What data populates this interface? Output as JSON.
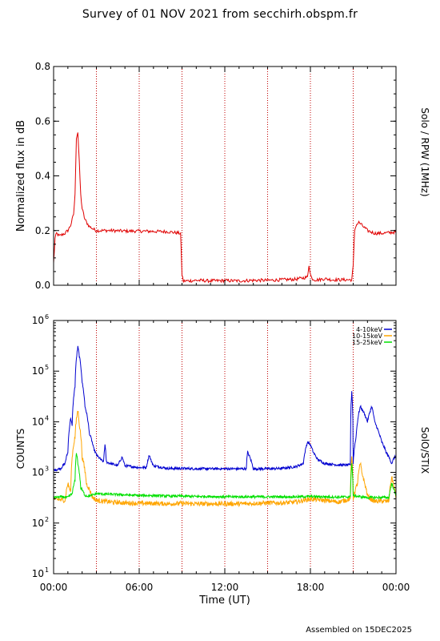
{
  "title": "Survey of 01 NOV 2021 from secchirh.obspm.fr",
  "footer": "Assembled on  15DEC2025",
  "colors": {
    "rpw": "#e00000",
    "stix_4_10": "#0000d0",
    "stix_10_15": "#ffa500",
    "stix_15_25": "#00e000",
    "vlines": "#c00000"
  },
  "chart_data": [
    {
      "type": "line",
      "panel": "top",
      "instrument_label": "Solo / RPW (1MHz)",
      "ylabel": "Normalized flux in dB",
      "xlabel": "",
      "xlim": [
        0,
        24
      ],
      "ylim": [
        0.0,
        0.8
      ],
      "yticks": [
        "0.0",
        "0.2",
        "0.4",
        "0.6",
        "0.8"
      ],
      "vertical_lines_hours": [
        3,
        6,
        9,
        12,
        15,
        18,
        21
      ],
      "series": [
        {
          "color": "#e00000",
          "x": [
            0.0,
            0.1,
            0.2,
            0.4,
            0.6,
            0.8,
            1.0,
            1.2,
            1.4,
            1.5,
            1.6,
            1.7,
            1.8,
            1.9,
            2.0,
            2.2,
            2.5,
            2.8,
            3.0,
            4.0,
            5.0,
            6.0,
            7.0,
            8.0,
            8.9,
            9.0,
            9.1,
            10.0,
            11.0,
            12.0,
            13.0,
            14.0,
            15.0,
            16.0,
            17.0,
            17.8,
            17.9,
            18.0,
            18.1,
            18.3,
            18.6,
            19.0,
            19.5,
            20.0,
            20.5,
            20.9,
            21.0,
            21.1,
            21.2,
            21.4,
            21.6,
            22.0,
            22.5,
            23.0,
            23.5,
            24.0
          ],
          "values": [
            0.08,
            0.17,
            0.19,
            0.18,
            0.185,
            0.19,
            0.2,
            0.22,
            0.26,
            0.33,
            0.54,
            0.56,
            0.45,
            0.33,
            0.28,
            0.24,
            0.215,
            0.205,
            0.2,
            0.2,
            0.198,
            0.198,
            0.197,
            0.196,
            0.19,
            0.04,
            0.015,
            0.018,
            0.016,
            0.017,
            0.016,
            0.018,
            0.018,
            0.02,
            0.022,
            0.03,
            0.075,
            0.04,
            0.025,
            0.02,
            0.02,
            0.024,
            0.02,
            0.02,
            0.02,
            0.02,
            0.07,
            0.2,
            0.22,
            0.23,
            0.22,
            0.2,
            0.19,
            0.19,
            0.192,
            0.195
          ]
        }
      ]
    },
    {
      "type": "line",
      "panel": "bottom",
      "instrument_label": "SolO/STIX",
      "ylabel": "COUNTS",
      "xlabel": "Time (UT)",
      "xlim": [
        0,
        24
      ],
      "ylim": [
        10,
        1000000
      ],
      "yscale": "log",
      "ytick_exponents": [
        "1",
        "2",
        "3",
        "4",
        "5",
        "6"
      ],
      "xticks": [
        "00:00",
        "06:00",
        "12:00",
        "18:00",
        "00:00"
      ],
      "vertical_lines_hours": [
        3,
        6,
        9,
        12,
        15,
        18,
        21
      ],
      "legend_position": "top-right",
      "series": [
        {
          "name": "4-10keV",
          "color": "#0000d0",
          "x": [
            0.0,
            0.5,
            0.8,
            1.0,
            1.2,
            1.3,
            1.5,
            1.7,
            1.8,
            2.0,
            2.2,
            2.5,
            2.8,
            3.0,
            3.3,
            3.5,
            3.6,
            3.7,
            4.0,
            4.5,
            4.8,
            5.0,
            6.0,
            6.5,
            6.7,
            6.8,
            7.0,
            8.0,
            9.0,
            10.0,
            11.0,
            12.0,
            13.0,
            13.5,
            13.6,
            14.0,
            15.0,
            16.0,
            17.0,
            17.5,
            17.8,
            18.0,
            18.2,
            18.5,
            19.0,
            20.0,
            20.8,
            20.9,
            21.0,
            21.2,
            21.5,
            21.8,
            22.0,
            22.3,
            22.5,
            22.8,
            23.0,
            23.3,
            23.5,
            23.7,
            23.9,
            24.0
          ],
          "values": [
            1100,
            1200,
            1500,
            2500,
            12000,
            8000,
            50000,
            300000,
            200000,
            60000,
            20000,
            6000,
            3000,
            2200,
            1800,
            1600,
            3500,
            1600,
            1500,
            1350,
            2000,
            1350,
            1250,
            1250,
            2200,
            1800,
            1350,
            1200,
            1200,
            1180,
            1180,
            1180,
            1180,
            1180,
            2500,
            1180,
            1180,
            1200,
            1300,
            1500,
            4000,
            3500,
            2500,
            1800,
            1500,
            1400,
            1400,
            40000,
            1500,
            5000,
            20000,
            14000,
            10000,
            20000,
            10000,
            6000,
            4000,
            2500,
            2000,
            1500,
            2000,
            2000
          ]
        },
        {
          "name": "10-15keV",
          "color": "#ffa500",
          "x": [
            0.0,
            0.8,
            1.0,
            1.2,
            1.5,
            1.7,
            1.8,
            2.0,
            2.3,
            2.7,
            3.0,
            4.0,
            5.0,
            6.0,
            7.0,
            8.0,
            9.0,
            10.0,
            11.0,
            12.0,
            13.0,
            14.0,
            15.0,
            16.0,
            17.0,
            18.0,
            19.0,
            20.0,
            20.8,
            20.9,
            21.0,
            21.3,
            21.5,
            21.6,
            21.8,
            22.0,
            22.2,
            22.5,
            23.0,
            23.5,
            23.7,
            24.0
          ],
          "values": [
            300,
            280,
            600,
            400,
            5000,
            17000,
            9000,
            2000,
            600,
            330,
            280,
            260,
            250,
            245,
            245,
            240,
            245,
            240,
            240,
            240,
            240,
            245,
            250,
            250,
            260,
            300,
            280,
            260,
            300,
            2000,
            300,
            600,
            1500,
            1000,
            600,
            350,
            300,
            270,
            270,
            270,
            800,
            300
          ]
        },
        {
          "name": "15-25keV",
          "color": "#00e000",
          "x": [
            0.0,
            0.5,
            1.0,
            1.3,
            1.5,
            1.6,
            1.7,
            1.9,
            2.2,
            2.5,
            3.0,
            4.0,
            5.0,
            6.0,
            7.0,
            8.0,
            9.0,
            10.0,
            11.0,
            12.0,
            13.0,
            14.0,
            15.0,
            16.0,
            17.0,
            18.0,
            19.0,
            20.0,
            20.8,
            20.9,
            21.0,
            21.5,
            22.0,
            23.0,
            23.5,
            23.7,
            24.0
          ],
          "values": [
            320,
            330,
            320,
            380,
            700,
            2500,
            1500,
            500,
            350,
            340,
            380,
            370,
            360,
            350,
            350,
            340,
            340,
            335,
            335,
            330,
            330,
            330,
            330,
            330,
            330,
            335,
            330,
            325,
            330,
            1500,
            350,
            330,
            320,
            320,
            320,
            600,
            330
          ]
        }
      ]
    }
  ]
}
